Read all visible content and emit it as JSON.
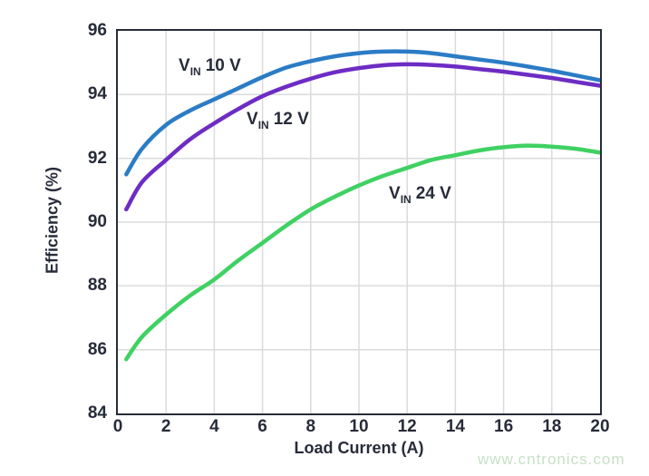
{
  "watermark": {
    "text": "www.cntronics.com"
  },
  "colors": {
    "axis_and_text": "#272c3a",
    "gridline": "#dadbdd",
    "series_vin10": "#2b7cc5",
    "series_vin12": "#6d2cc4",
    "series_vin24": "#3fd163",
    "watermark": "#c7e1c4"
  },
  "chart_data": {
    "type": "line",
    "title": "",
    "xlabel": "Load Current (A)",
    "ylabel": "Efficiency (%)",
    "xlim": [
      0,
      20
    ],
    "ylim": [
      84,
      96
    ],
    "xticks": [
      "0",
      "2",
      "4",
      "6",
      "8",
      "10",
      "12",
      "14",
      "16",
      "18",
      "20"
    ],
    "yticks": [
      "96",
      "94",
      "92",
      "90",
      "88",
      "86",
      "84"
    ],
    "grid": true,
    "legend_position": "inline-annotations",
    "series": [
      {
        "name": "VIN 10 V",
        "label": {
          "base": "V",
          "sub": "IN",
          "rest": "10 V"
        },
        "color": "#2b7cc5",
        "x": [
          0.35,
          1,
          2,
          3,
          4,
          5,
          6,
          7,
          8,
          9,
          10,
          11,
          12,
          13,
          14,
          15,
          16,
          17,
          18,
          19,
          20
        ],
        "y": [
          91.5,
          92.3,
          93.05,
          93.5,
          93.85,
          94.2,
          94.55,
          94.85,
          95.05,
          95.2,
          95.3,
          95.35,
          95.35,
          95.3,
          95.2,
          95.1,
          95.0,
          94.88,
          94.75,
          94.6,
          94.45
        ]
      },
      {
        "name": "VIN 12 V",
        "label": {
          "base": "V",
          "sub": "IN",
          "rest": "12 V"
        },
        "color": "#6d2cc4",
        "x": [
          0.35,
          1,
          2,
          3,
          4,
          5,
          6,
          7,
          8,
          9,
          10,
          11,
          12,
          13,
          14,
          15,
          16,
          17,
          18,
          19,
          20
        ],
        "y": [
          90.4,
          91.25,
          91.95,
          92.6,
          93.1,
          93.55,
          93.95,
          94.25,
          94.5,
          94.7,
          94.83,
          94.92,
          94.95,
          94.93,
          94.88,
          94.8,
          94.72,
          94.62,
          94.52,
          94.4,
          94.28
        ]
      },
      {
        "name": "VIN 24 V",
        "label": {
          "base": "V",
          "sub": "IN",
          "rest": "24 V"
        },
        "color": "#3fd163",
        "x": [
          0.35,
          1,
          2,
          3,
          4,
          5,
          6,
          7,
          8,
          9,
          10,
          11,
          12,
          13,
          14,
          15,
          16,
          17,
          18,
          19,
          20
        ],
        "y": [
          85.7,
          86.4,
          87.1,
          87.7,
          88.2,
          88.8,
          89.35,
          89.9,
          90.4,
          90.8,
          91.15,
          91.45,
          91.7,
          91.95,
          92.1,
          92.25,
          92.35,
          92.4,
          92.37,
          92.3,
          92.18
        ]
      }
    ]
  }
}
